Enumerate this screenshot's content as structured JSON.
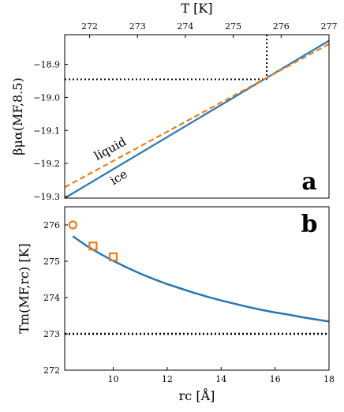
{
  "chart_data": [
    {
      "panel": "a",
      "type": "line",
      "panel_label": "a",
      "top_xlabel": "T [K]",
      "top_xlim": [
        271.48,
        277
      ],
      "top_xticks": [
        272,
        273,
        274,
        275,
        276,
        277
      ],
      "ylabel": "βμα(MF,8.5)",
      "ylim": [
        -19.305,
        -18.81
      ],
      "yticks": [
        -18.9,
        -19.0,
        -19.1,
        -19.2,
        -19.3
      ],
      "ytick_labels": [
        "−18.9",
        "−19.0",
        "−19.1",
        "−19.2",
        "−19.3"
      ],
      "series": [
        {
          "name": "ice",
          "style": "solid",
          "color": "#2a77b4",
          "x": [
            271.48,
            277.0
          ],
          "y": [
            -19.305,
            -18.828
          ]
        },
        {
          "name": "liquid",
          "style": "dashed",
          "color": "#f07d1a",
          "x": [
            271.48,
            277.0
          ],
          "y": [
            -19.272,
            -18.838
          ]
        }
      ],
      "annotations": {
        "crossing_T": 275.7,
        "crossing_value": -18.945,
        "dotted_vertical_range": [
          -18.945,
          -18.81
        ],
        "dotted_horizontal_range": [
          271.48,
          275.7
        ]
      },
      "grid": false
    },
    {
      "panel": "b",
      "type": "line",
      "panel_label": "b",
      "xlabel": "rc [Å]",
      "xlim": [
        8.2,
        18
      ],
      "xticks": [
        10,
        12,
        14,
        16,
        18
      ],
      "ylabel": "Tm(MF,rc) [K]",
      "ylim": [
        272,
        276.5
      ],
      "yticks": [
        272,
        273,
        274,
        275,
        276
      ],
      "curve": {
        "color": "#2a77b4",
        "x": [
          8.5,
          9,
          9.5,
          10,
          10.5,
          11,
          11.5,
          12,
          12.5,
          13,
          13.5,
          14,
          14.5,
          15,
          15.5,
          16,
          16.5,
          17,
          17.5,
          18
        ],
        "y": [
          275.69,
          275.43,
          275.21,
          275.01,
          274.83,
          274.66,
          274.51,
          274.37,
          274.25,
          274.13,
          274.02,
          273.92,
          273.83,
          273.74,
          273.66,
          273.59,
          273.53,
          273.46,
          273.4,
          273.34
        ]
      },
      "circle_point": {
        "x": 8.5,
        "y": 276.0,
        "color": "#f07d1a"
      },
      "square_points": {
        "color": "#f07d1a",
        "x": [
          9.25,
          10.0
        ],
        "y": [
          275.42,
          275.12
        ]
      },
      "reference_line": {
        "y": 273.0,
        "style": "dotted",
        "color": "#000000"
      },
      "grid": false
    }
  ]
}
